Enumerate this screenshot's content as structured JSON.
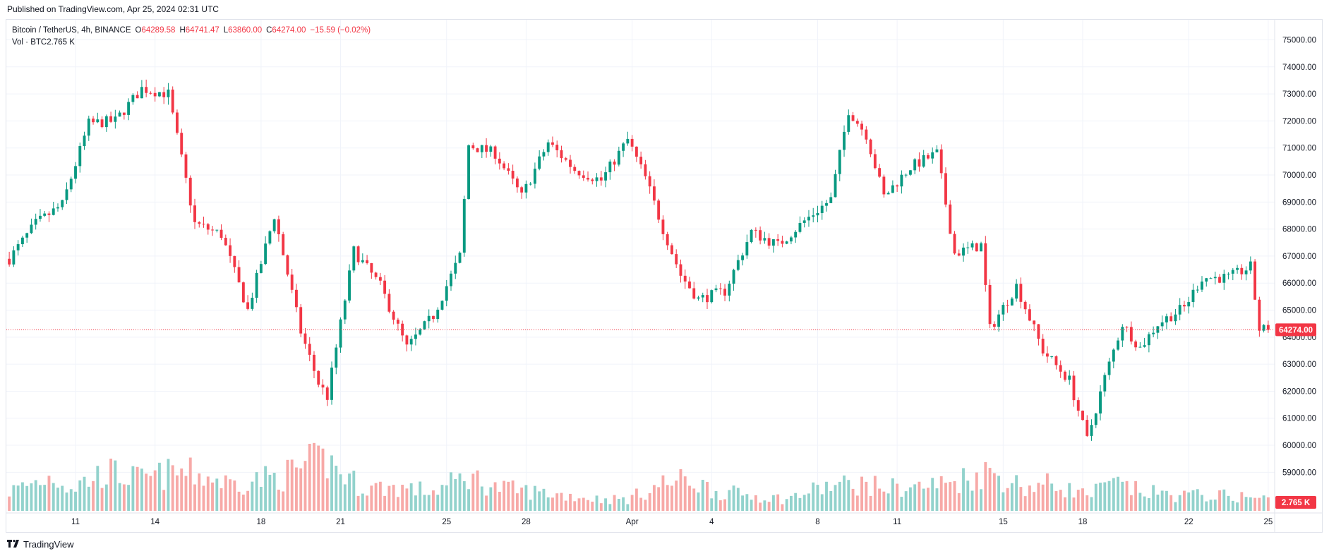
{
  "header": {
    "published": "Published on TradingView.com, Apr 25, 2024 02:31 UTC"
  },
  "legend": {
    "symbol": "Bitcoin / TetherUS, 4h, BINANCE",
    "open_label": "O",
    "open": "64289.58",
    "high_label": "H",
    "high": "64741.47",
    "low_label": "L",
    "low": "63860.00",
    "close_label": "C",
    "close": "64274.00",
    "change": "−15.59 (−0.02%)",
    "volume_label": "Vol · BTC",
    "volume": "2.765 K"
  },
  "footer": {
    "brand": "TradingView"
  },
  "colors": {
    "up": "#089981",
    "down": "#f23645",
    "up_volume": "#92d2cc",
    "down_volume": "#f7a9a7",
    "grid": "#f0f3fa",
    "axis_text": "#131722"
  },
  "chart_data": {
    "type": "candlestick",
    "y_axis": {
      "ticks": [
        "75000.00",
        "74000.00",
        "73000.00",
        "72000.00",
        "71000.00",
        "70000.00",
        "69000.00",
        "68000.00",
        "67000.00",
        "66000.00",
        "65000.00",
        "64000.00",
        "63000.00",
        "62000.00",
        "61000.00",
        "60000.00",
        "59000.00"
      ],
      "range": [
        58200,
        75300
      ]
    },
    "x_axis": {
      "ticks": [
        {
          "label": "11",
          "bar": 15
        },
        {
          "label": "14",
          "bar": 33
        },
        {
          "label": "18",
          "bar": 57
        },
        {
          "label": "21",
          "bar": 75
        },
        {
          "label": "25",
          "bar": 99
        },
        {
          "label": "28",
          "bar": 117
        },
        {
          "label": "Apr",
          "bar": 141
        },
        {
          "label": "4",
          "bar": 159
        },
        {
          "label": "8",
          "bar": 183
        },
        {
          "label": "11",
          "bar": 201
        },
        {
          "label": "15",
          "bar": 225
        },
        {
          "label": "18",
          "bar": 243
        },
        {
          "label": "22",
          "bar": 267
        },
        {
          "label": "25",
          "bar": 285
        }
      ]
    },
    "last_price": {
      "value": 64274,
      "label": "64274.00"
    },
    "last_volume_label": "2.765 K",
    "price_anchors": [
      [
        0,
        66900
      ],
      [
        6,
        68200
      ],
      [
        12,
        68900
      ],
      [
        18,
        71900
      ],
      [
        24,
        72000
      ],
      [
        30,
        73200
      ],
      [
        36,
        73000
      ],
      [
        42,
        68200
      ],
      [
        48,
        67800
      ],
      [
        54,
        65000
      ],
      [
        60,
        68500
      ],
      [
        66,
        64200
      ],
      [
        70,
        62300
      ],
      [
        72,
        61800
      ],
      [
        78,
        67200
      ],
      [
        84,
        65900
      ],
      [
        90,
        63600
      ],
      [
        96,
        64800
      ],
      [
        102,
        67000
      ],
      [
        104,
        71100
      ],
      [
        110,
        70800
      ],
      [
        116,
        69200
      ],
      [
        122,
        71200
      ],
      [
        128,
        70200
      ],
      [
        134,
        69800
      ],
      [
        140,
        71300
      ],
      [
        144,
        69900
      ],
      [
        148,
        68000
      ],
      [
        152,
        66300
      ],
      [
        156,
        65400
      ],
      [
        162,
        65700
      ],
      [
        168,
        67900
      ],
      [
        174,
        67400
      ],
      [
        180,
        68300
      ],
      [
        186,
        69100
      ],
      [
        190,
        72400
      ],
      [
        194,
        71500
      ],
      [
        198,
        69200
      ],
      [
        204,
        70300
      ],
      [
        210,
        70800
      ],
      [
        214,
        67100
      ],
      [
        220,
        67400
      ],
      [
        222,
        64300
      ],
      [
        228,
        65900
      ],
      [
        234,
        63500
      ],
      [
        240,
        62400
      ],
      [
        244,
        60200
      ],
      [
        248,
        62500
      ],
      [
        252,
        64500
      ],
      [
        256,
        63600
      ],
      [
        260,
        64500
      ],
      [
        266,
        65100
      ],
      [
        270,
        66200
      ],
      [
        276,
        66200
      ],
      [
        281,
        66600
      ],
      [
        283,
        64300
      ],
      [
        285,
        64274
      ]
    ],
    "volume_anchors": [
      [
        0,
        0.25
      ],
      [
        10,
        0.45
      ],
      [
        14,
        0.3
      ],
      [
        22,
        0.5
      ],
      [
        30,
        0.4
      ],
      [
        38,
        0.5
      ],
      [
        44,
        0.45
      ],
      [
        50,
        0.35
      ],
      [
        56,
        0.4
      ],
      [
        62,
        0.45
      ],
      [
        68,
        0.6
      ],
      [
        72,
        0.65
      ],
      [
        76,
        0.45
      ],
      [
        80,
        0.3
      ],
      [
        88,
        0.3
      ],
      [
        96,
        0.25
      ],
      [
        104,
        0.45
      ],
      [
        110,
        0.3
      ],
      [
        118,
        0.25
      ],
      [
        126,
        0.2
      ],
      [
        134,
        0.15
      ],
      [
        140,
        0.15
      ],
      [
        148,
        0.35
      ],
      [
        154,
        0.4
      ],
      [
        160,
        0.25
      ],
      [
        168,
        0.2
      ],
      [
        176,
        0.15
      ],
      [
        184,
        0.3
      ],
      [
        192,
        0.35
      ],
      [
        198,
        0.3
      ],
      [
        204,
        0.3
      ],
      [
        212,
        0.35
      ],
      [
        218,
        0.45
      ],
      [
        222,
        0.5
      ],
      [
        230,
        0.3
      ],
      [
        236,
        0.35
      ],
      [
        244,
        0.2
      ],
      [
        250,
        0.35
      ],
      [
        256,
        0.25
      ],
      [
        264,
        0.2
      ],
      [
        272,
        0.2
      ],
      [
        280,
        0.18
      ],
      [
        285,
        0.15
      ]
    ]
  }
}
